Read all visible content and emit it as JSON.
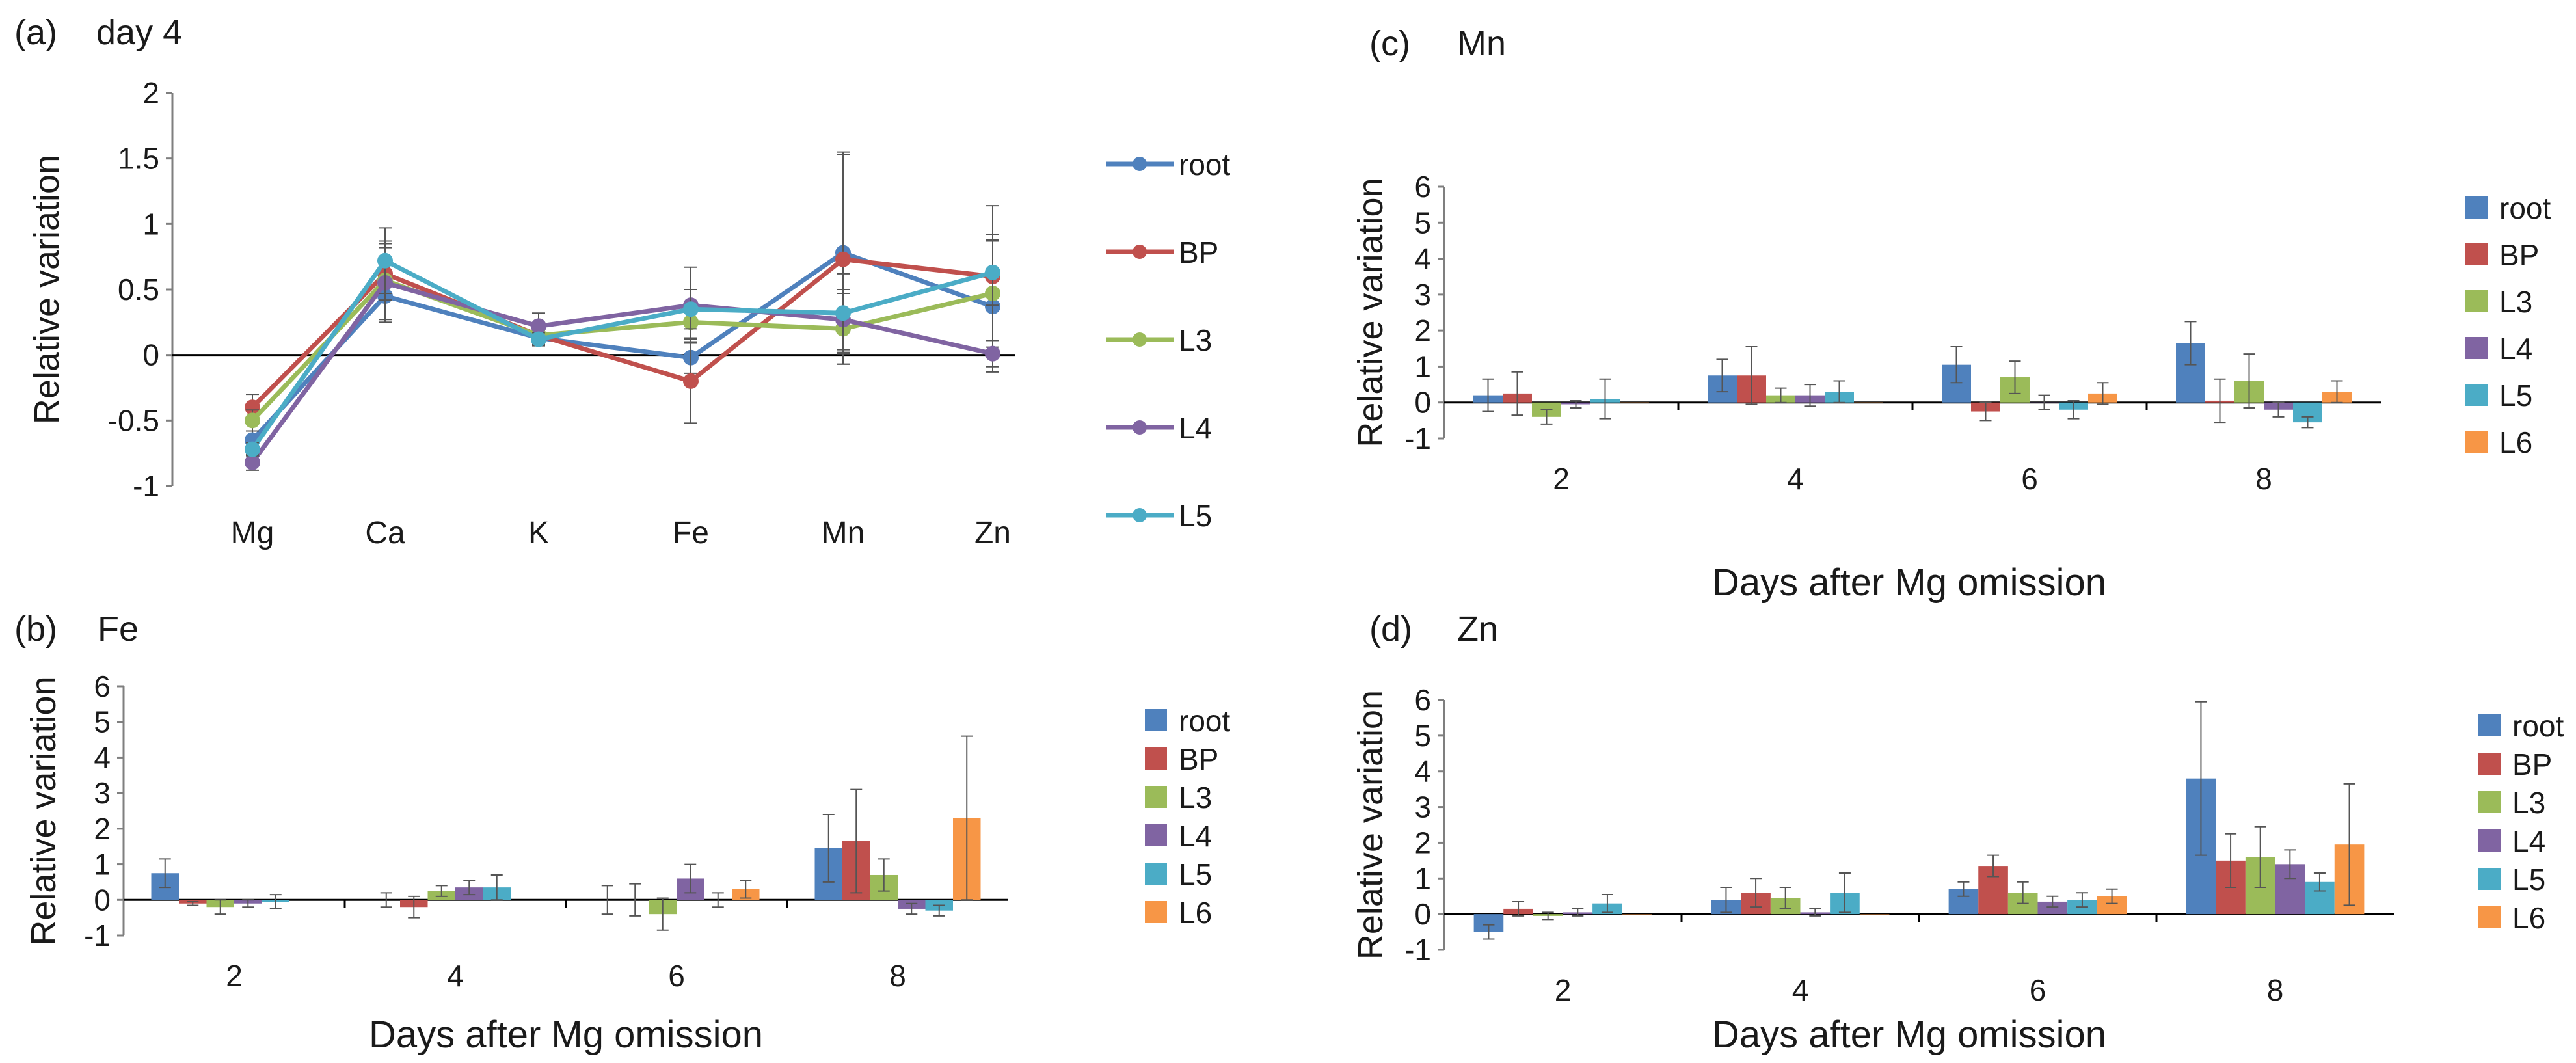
{
  "colors": {
    "root": "#4f81bd",
    "BP": "#c0504d",
    "L3": "#9bbb59",
    "L4": "#8064a2",
    "L5": "#4bacc6",
    "L6": "#f79646"
  },
  "chart_data": [
    {
      "id": "a",
      "panel_label": "(a)",
      "title": "day 4",
      "type": "line",
      "categories": [
        "Mg",
        "Ca",
        "K",
        "Fe",
        "Mn",
        "Zn"
      ],
      "ylabel": "Relative variation",
      "xlabel": "",
      "ylim": [
        -1,
        2
      ],
      "yticks": [
        "-1",
        "-0.5",
        "0",
        "0.5",
        "1",
        "1.5",
        "2"
      ],
      "tick_values": [
        -1,
        -0.5,
        0,
        0.5,
        1,
        1.5,
        2
      ],
      "legend_position": "right",
      "series": [
        {
          "name": "root",
          "color": "#4f81bd",
          "values": [
            -0.65,
            0.45,
            0.13,
            -0.02,
            0.78,
            0.37
          ],
          "errors": [
            0.07,
            0.2,
            0.05,
            0.12,
            0.77,
            0.5
          ]
        },
        {
          "name": "BP",
          "color": "#c0504d",
          "values": [
            -0.4,
            0.62,
            0.15,
            -0.2,
            0.73,
            0.6
          ],
          "errors": [
            0.1,
            0.2,
            0.05,
            0.32,
            0.8,
            0.54
          ]
        },
        {
          "name": "L3",
          "color": "#9bbb59",
          "values": [
            -0.5,
            0.57,
            0.15,
            0.25,
            0.2,
            0.47
          ],
          "errors": [
            0.08,
            0.3,
            0.04,
            0.12,
            0.27,
            0.45
          ]
        },
        {
          "name": "L4",
          "color": "#8064a2",
          "values": [
            -0.82,
            0.55,
            0.22,
            0.38,
            0.27,
            0.01
          ],
          "errors": [
            0.06,
            0.3,
            0.1,
            0.29,
            0.23,
            0.1
          ]
        },
        {
          "name": "L5",
          "color": "#4bacc6",
          "values": [
            -0.72,
            0.72,
            0.12,
            0.35,
            0.32,
            0.63
          ],
          "errors": [
            0.05,
            0.25,
            0.05,
            0.15,
            0.3,
            0.25
          ]
        }
      ]
    },
    {
      "id": "b",
      "panel_label": "(b)",
      "title": "Fe",
      "type": "bar",
      "categories": [
        "2",
        "4",
        "6",
        "8"
      ],
      "ylabel": "Relative variation",
      "xlabel": "Days after Mg omission",
      "ylim": [
        -1,
        6
      ],
      "yticks": [
        "-1",
        "0",
        "1",
        "2",
        "3",
        "4",
        "5",
        "6"
      ],
      "tick_values": [
        -1,
        0,
        1,
        2,
        3,
        4,
        5,
        6
      ],
      "legend_position": "right",
      "series": [
        {
          "name": "root",
          "color": "#4f81bd",
          "values": [
            0.75,
            0.0,
            0.0,
            1.45
          ],
          "errors": [
            0.4,
            0.2,
            0.4,
            0.95
          ]
        },
        {
          "name": "BP",
          "color": "#c0504d",
          "values": [
            -0.1,
            -0.2,
            0.0,
            1.65
          ],
          "errors": [
            0.05,
            0.3,
            0.45,
            1.45
          ]
        },
        {
          "name": "L3",
          "color": "#9bbb59",
          "values": [
            -0.2,
            0.25,
            -0.4,
            0.7
          ],
          "errors": [
            0.2,
            0.15,
            0.45,
            0.45
          ]
        },
        {
          "name": "L4",
          "color": "#8064a2",
          "values": [
            -0.1,
            0.35,
            0.6,
            -0.25
          ],
          "errors": [
            0.1,
            0.2,
            0.4,
            0.15
          ]
        },
        {
          "name": "L5",
          "color": "#4bacc6",
          "values": [
            -0.05,
            0.35,
            0.0,
            -0.3
          ],
          "errors": [
            0.2,
            0.35,
            0.2,
            0.15
          ]
        },
        {
          "name": "L6",
          "color": "#f79646",
          "values": [
            0.0,
            0.0,
            0.3,
            2.3
          ],
          "errors": [
            0.0,
            0.0,
            0.25,
            2.3
          ]
        }
      ]
    },
    {
      "id": "c",
      "panel_label": "(c)",
      "title": "Mn",
      "type": "bar",
      "categories": [
        "2",
        "4",
        "6",
        "8"
      ],
      "ylabel": "Relative variation",
      "xlabel": "Days after Mg omission",
      "ylim": [
        -1,
        6
      ],
      "yticks": [
        "-1",
        "0",
        "1",
        "2",
        "3",
        "4",
        "5",
        "6"
      ],
      "tick_values": [
        -1,
        0,
        1,
        2,
        3,
        4,
        5,
        6
      ],
      "legend_position": "right",
      "series": [
        {
          "name": "root",
          "color": "#4f81bd",
          "values": [
            0.2,
            0.75,
            1.05,
            1.65
          ],
          "errors": [
            0.45,
            0.45,
            0.5,
            0.6
          ]
        },
        {
          "name": "BP",
          "color": "#c0504d",
          "values": [
            0.25,
            0.75,
            -0.25,
            0.05
          ],
          "errors": [
            0.6,
            0.8,
            0.25,
            0.6
          ]
        },
        {
          "name": "L3",
          "color": "#9bbb59",
          "values": [
            -0.4,
            0.2,
            0.7,
            0.6
          ],
          "errors": [
            0.2,
            0.2,
            0.45,
            0.75
          ]
        },
        {
          "name": "L4",
          "color": "#8064a2",
          "values": [
            -0.05,
            0.2,
            0.0,
            -0.2
          ],
          "errors": [
            0.1,
            0.3,
            0.2,
            0.2
          ]
        },
        {
          "name": "L5",
          "color": "#4bacc6",
          "values": [
            0.1,
            0.3,
            -0.2,
            -0.55
          ],
          "errors": [
            0.55,
            0.3,
            0.25,
            0.15
          ]
        },
        {
          "name": "L6",
          "color": "#f79646",
          "values": [
            0.0,
            0.0,
            0.25,
            0.3
          ],
          "errors": [
            0.0,
            0.0,
            0.3,
            0.3
          ]
        }
      ]
    },
    {
      "id": "d",
      "panel_label": "(d)",
      "title": "Zn",
      "type": "bar",
      "categories": [
        "2",
        "4",
        "6",
        "8"
      ],
      "ylabel": "Relative variation",
      "xlabel": "Days after Mg omission",
      "ylim": [
        -1,
        6
      ],
      "yticks": [
        "-1",
        "0",
        "1",
        "2",
        "3",
        "4",
        "5",
        "6"
      ],
      "tick_values": [
        -1,
        0,
        1,
        2,
        3,
        4,
        5,
        6
      ],
      "legend_position": "right",
      "series": [
        {
          "name": "root",
          "color": "#4f81bd",
          "values": [
            -0.5,
            0.4,
            0.7,
            3.8
          ],
          "errors": [
            0.2,
            0.35,
            0.2,
            2.15
          ]
        },
        {
          "name": "BP",
          "color": "#c0504d",
          "values": [
            0.15,
            0.6,
            1.35,
            1.5
          ],
          "errors": [
            0.2,
            0.4,
            0.3,
            0.75
          ]
        },
        {
          "name": "L3",
          "color": "#9bbb59",
          "values": [
            -0.05,
            0.45,
            0.6,
            1.6
          ],
          "errors": [
            0.1,
            0.3,
            0.3,
            0.85
          ]
        },
        {
          "name": "L4",
          "color": "#8064a2",
          "values": [
            0.05,
            0.05,
            0.35,
            1.4
          ],
          "errors": [
            0.1,
            0.1,
            0.15,
            0.4
          ]
        },
        {
          "name": "L5",
          "color": "#4bacc6",
          "values": [
            0.3,
            0.6,
            0.4,
            0.9
          ],
          "errors": [
            0.25,
            0.55,
            0.2,
            0.25
          ]
        },
        {
          "name": "L6",
          "color": "#f79646",
          "values": [
            0.0,
            0.0,
            0.5,
            1.95
          ],
          "errors": [
            0.0,
            0.0,
            0.2,
            1.7
          ]
        }
      ]
    }
  ]
}
